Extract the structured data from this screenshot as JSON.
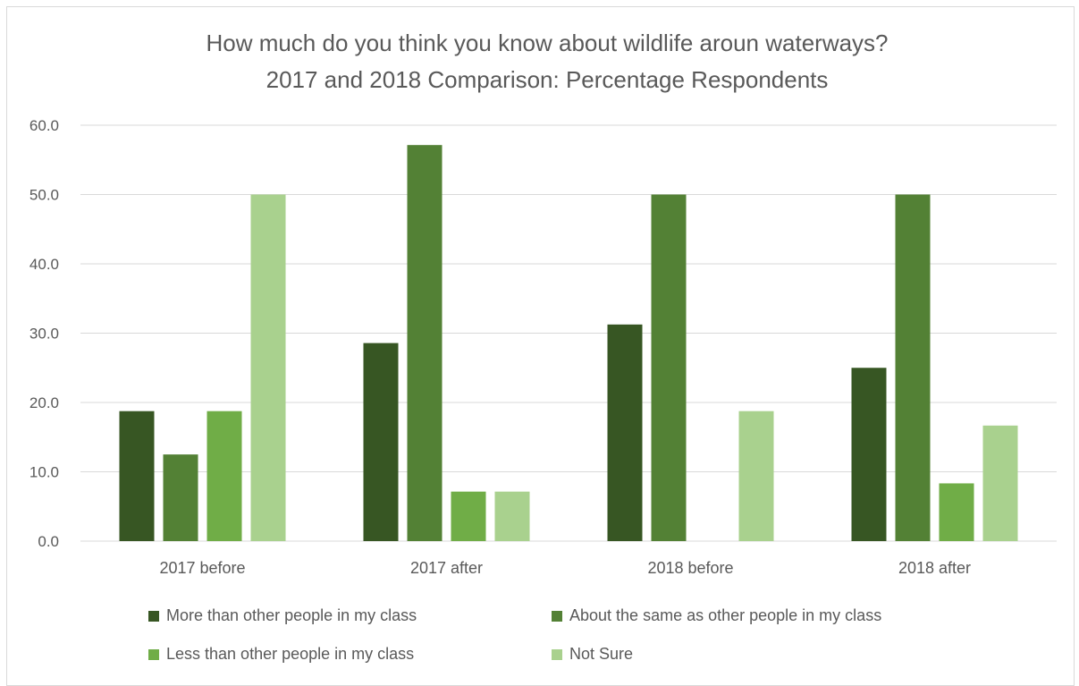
{
  "chart_data": {
    "type": "bar",
    "title": "How much do you think you know about wildlife aroun waterways?",
    "subtitle": "2017 and 2018 Comparison: Percentage Respondents",
    "xlabel": "",
    "ylabel": "",
    "categories": [
      "2017 before",
      "2017 after",
      "2018 before",
      "2018 after"
    ],
    "series": [
      {
        "name": "More than other people in my class",
        "color": "#375623",
        "values": [
          18.75,
          28.57,
          31.25,
          25.0
        ]
      },
      {
        "name": "About the same as other people in my class",
        "color": "#538135",
        "values": [
          12.5,
          57.14,
          50.0,
          50.0
        ]
      },
      {
        "name": "Less than other people in my class",
        "color": "#70ad47",
        "values": [
          18.75,
          7.14,
          0,
          8.33
        ]
      },
      {
        "name": "Not Sure",
        "color": "#a9d18e",
        "values": [
          50.0,
          7.14,
          18.75,
          16.67
        ]
      }
    ],
    "ylim": [
      0,
      60
    ],
    "yticks": [
      "0.0",
      "10.0",
      "20.0",
      "30.0",
      "40.0",
      "50.0",
      "60.0"
    ],
    "grid": true,
    "legend": "bottom"
  }
}
